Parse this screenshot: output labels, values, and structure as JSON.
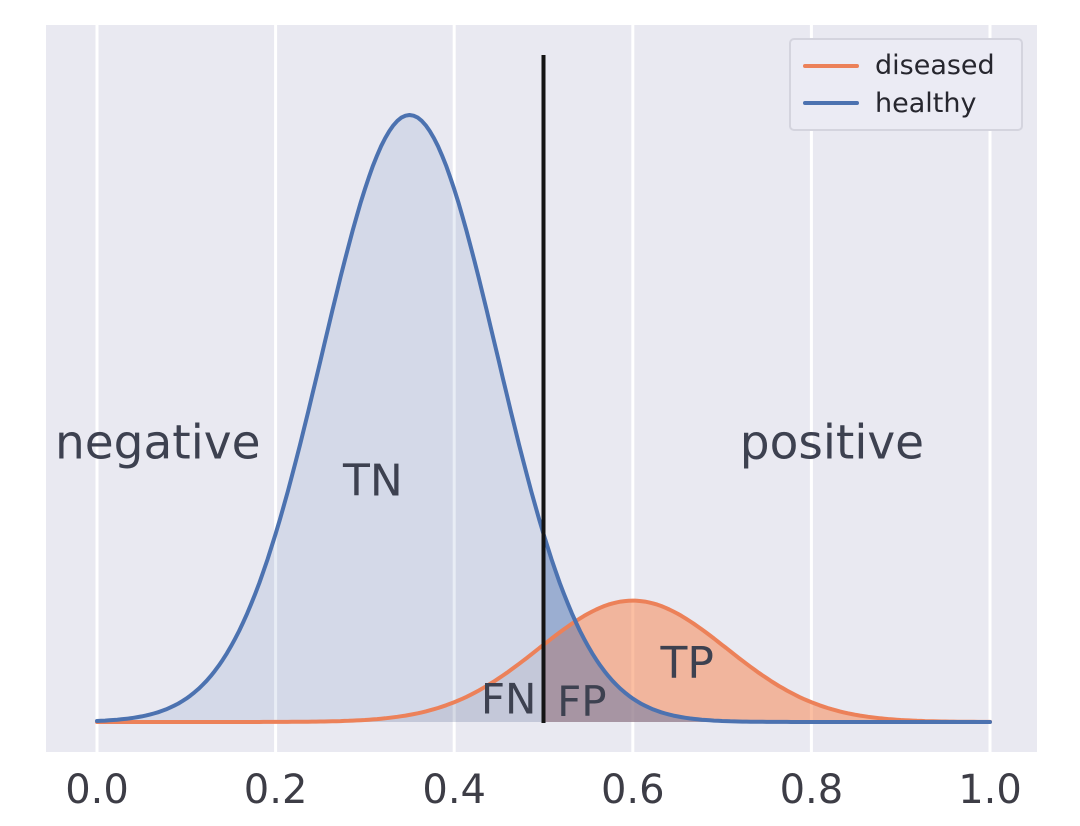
{
  "chart_data": {
    "type": "area",
    "title": "",
    "xlabel": "",
    "ylabel": "",
    "xlim": [
      0.0,
      1.0
    ],
    "x_ticks": [
      "0.0",
      "0.2",
      "0.4",
      "0.6",
      "0.8",
      "1.0"
    ],
    "x_tick_values": [
      0.0,
      0.2,
      0.4,
      0.6,
      0.8,
      1.0
    ],
    "y_axis": "probability density (no visible ticks or labels)",
    "grid": "vertical white gridlines on light lavender panel",
    "threshold": {
      "x": 0.5,
      "color": "#141414"
    },
    "background_color": "#e9e9f1",
    "gridline_color": "#ffffff",
    "text_color": "#3d4150",
    "tick_color": "#3d3d46",
    "series": [
      {
        "name": "diseased",
        "color": "#ec8159",
        "distribution": "gaussian",
        "mean": 0.6,
        "std": 0.105,
        "peak_height": 0.2,
        "fill_left_of_threshold": "rgba(60,60,85,0.10)",
        "fill_right_of_threshold": "rgba(247,138,88,0.55)"
      },
      {
        "name": "healthy",
        "color": "#4c72b0",
        "distribution": "gaussian",
        "mean": 0.35,
        "std": 0.098,
        "peak_height": 1.0,
        "fill_full": "rgba(76,114,176,0.13)",
        "fill_right_of_threshold": "rgba(76,114,176,0.42)"
      }
    ],
    "legend": {
      "position": "top-right",
      "entries": [
        {
          "label": "diseased",
          "color": "#ec8159"
        },
        {
          "label": "healthy",
          "color": "#4c72b0"
        }
      ]
    },
    "annotations": [
      {
        "text": "negative",
        "x": 0.068,
        "y": 0.46,
        "size": 47
      },
      {
        "text": "TN",
        "x": 0.309,
        "y": 0.397,
        "size": 44
      },
      {
        "text": "positive",
        "x": 0.823,
        "y": 0.46,
        "size": 47
      },
      {
        "text": "FN",
        "x": 0.461,
        "y": 0.038,
        "size": 42
      },
      {
        "text": "FP",
        "x": 0.543,
        "y": 0.034,
        "size": 42
      },
      {
        "text": "TP",
        "x": 0.661,
        "y": 0.096,
        "size": 44
      }
    ]
  }
}
